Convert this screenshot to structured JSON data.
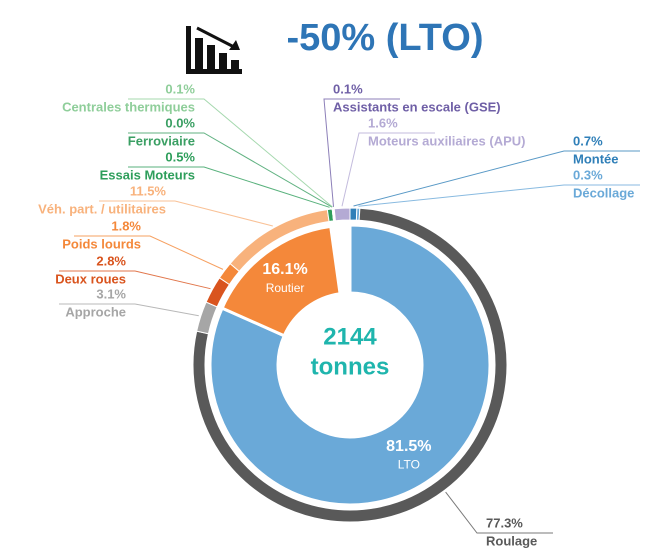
{
  "chart_data": {
    "type": "donut",
    "title": "-50% (LTO)",
    "center_text": [
      "2144",
      "tonnes"
    ],
    "inner": {
      "categories": [
        "LTO",
        "Routier"
      ],
      "values": [
        81.5,
        16.1
      ],
      "value_labels": [
        "81.5%",
        "16.1%"
      ],
      "colors": [
        "#6aa9d8",
        "#f4883a"
      ]
    },
    "outer": {
      "categories": [
        "Montée",
        "Décollage",
        "Roulage",
        "Approche",
        "Deux roues",
        "Poids lourds",
        "Véh. part. / utilitaires",
        "Essais Moteurs",
        "Ferroviaire",
        "Centrales thermiques",
        "Assistants en escale (GSE)",
        "Moteurs auxiliaires (APU)"
      ],
      "values": [
        0.7,
        0.3,
        77.3,
        3.1,
        2.8,
        1.8,
        11.5,
        0.5,
        0.0,
        0.1,
        0.1,
        1.6
      ],
      "value_labels": [
        "0.7%",
        "0.3%",
        "77.3%",
        "3.1%",
        "2.8%",
        "1.8%",
        "11.5%",
        "0.5%",
        "0.0%",
        "0.1%",
        "0.1%",
        "1.6%"
      ],
      "colors": [
        "#2f7fb8",
        "#6aa9d8",
        "#595959",
        "#a6a6a6",
        "#d9541e",
        "#f4883a",
        "#f8b27c",
        "#2e9e5b",
        "#3a9f63",
        "#8fce9a",
        "#6f5fa6",
        "#b4aad4"
      ]
    }
  }
}
